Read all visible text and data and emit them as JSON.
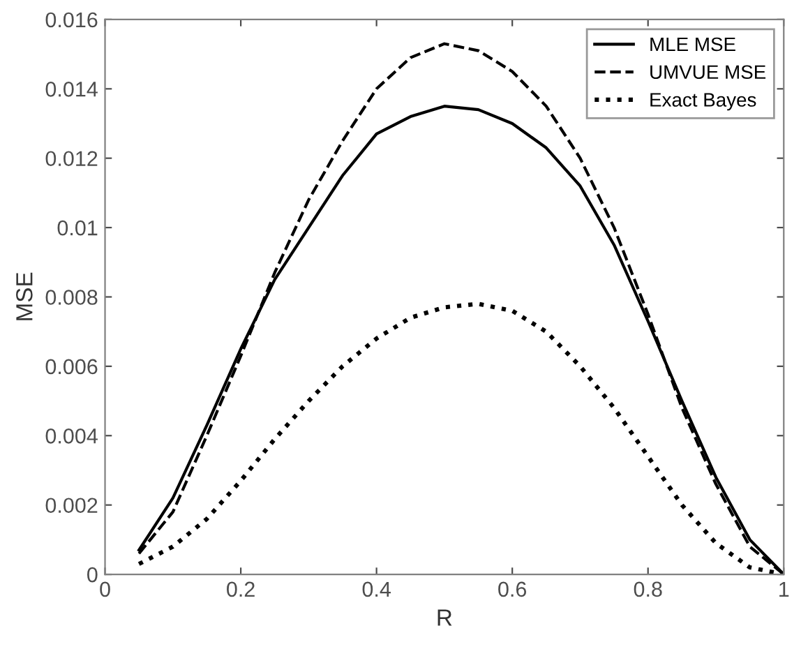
{
  "chart_data": {
    "type": "line",
    "xlabel": "R",
    "ylabel": "MSE",
    "xlim": [
      0,
      1
    ],
    "ylim": [
      0,
      0.016
    ],
    "xticks": [
      0,
      0.2,
      0.4,
      0.6,
      0.8,
      1
    ],
    "yticks": [
      0,
      0.002,
      0.004,
      0.006,
      0.008,
      0.01,
      0.012,
      0.014,
      0.016
    ],
    "x": [
      0.05,
      0.1,
      0.15,
      0.2,
      0.25,
      0.3,
      0.35,
      0.4,
      0.45,
      0.5,
      0.55,
      0.6,
      0.65,
      0.7,
      0.75,
      0.8,
      0.85,
      0.9,
      0.95,
      1
    ],
    "grid": false,
    "legend": "top right",
    "marker": "none",
    "series": [
      {
        "name": "MLE MSE",
        "color": "#000000",
        "line_style": "solid",
        "values": [
          0.0007,
          0.0022,
          0.0043,
          0.0065,
          0.0085,
          0.01,
          0.0115,
          0.0127,
          0.0132,
          0.0135,
          0.0134,
          0.013,
          0.0123,
          0.0112,
          0.0095,
          0.0073,
          0.005,
          0.0028,
          0.001,
          0
        ]
      },
      {
        "name": "UMVUE MSE",
        "color": "#000000",
        "line_style": "dashed",
        "values": [
          0.0006,
          0.0018,
          0.004,
          0.0063,
          0.0087,
          0.0108,
          0.0125,
          0.014,
          0.0149,
          0.0153,
          0.0151,
          0.0145,
          0.0135,
          0.012,
          0.01,
          0.0075,
          0.0048,
          0.0026,
          0.0008,
          0
        ]
      },
      {
        "name": "Exact Bayes",
        "color": "#000000",
        "line_style": "dotted",
        "values": [
          0.0003,
          0.0008,
          0.0016,
          0.0027,
          0.0039,
          0.005,
          0.006,
          0.0068,
          0.0074,
          0.0077,
          0.0078,
          0.0076,
          0.007,
          0.006,
          0.0048,
          0.0034,
          0.002,
          0.0009,
          0.0002,
          0
        ]
      }
    ]
  }
}
